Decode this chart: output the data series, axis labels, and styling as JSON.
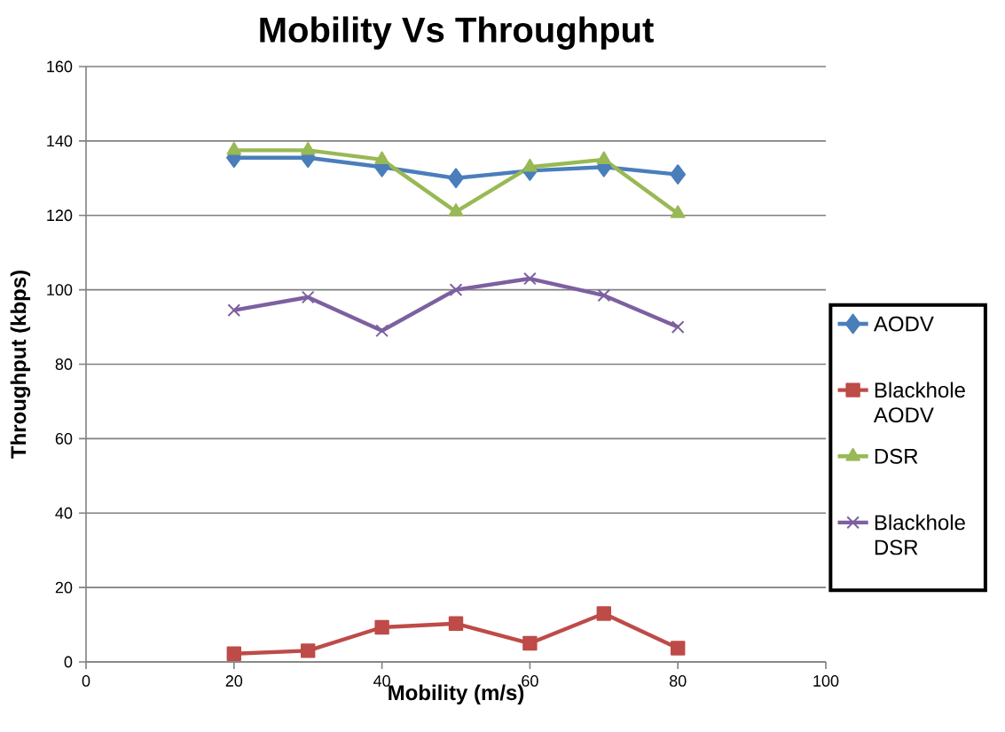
{
  "chart_data": {
    "type": "line",
    "title": "Mobility Vs Throughput",
    "xlabel": "Mobility (m/s)",
    "ylabel": "Throughput (kbps)",
    "x": [
      20,
      30,
      40,
      50,
      60,
      70,
      80
    ],
    "series": [
      {
        "name": "AODV",
        "color": "#4a7ebb",
        "marker": "diamond",
        "values": [
          135.5,
          135.5,
          133,
          130,
          132,
          133,
          131
        ]
      },
      {
        "name": "Blackhole AODV",
        "color": "#be4b48",
        "marker": "square",
        "values": [
          2.2,
          3,
          9.3,
          10.3,
          5,
          13,
          3.7
        ]
      },
      {
        "name": "DSR",
        "color": "#98b954",
        "marker": "triangle",
        "values": [
          137.5,
          137.5,
          135,
          121,
          133,
          135,
          120.5
        ]
      },
      {
        "name": "Blackhole DSR",
        "color": "#7d60a0",
        "marker": "cross",
        "values": [
          94.5,
          98,
          89,
          100,
          103,
          98.5,
          90
        ]
      }
    ],
    "xlim": [
      0,
      100
    ],
    "xticks": [
      0,
      20,
      40,
      60,
      80,
      100
    ],
    "ylim": [
      0,
      160
    ],
    "yticks": [
      0,
      20,
      40,
      60,
      80,
      100,
      120,
      140,
      160
    ],
    "grid": "y",
    "legend": "right",
    "line_style": "solid"
  }
}
